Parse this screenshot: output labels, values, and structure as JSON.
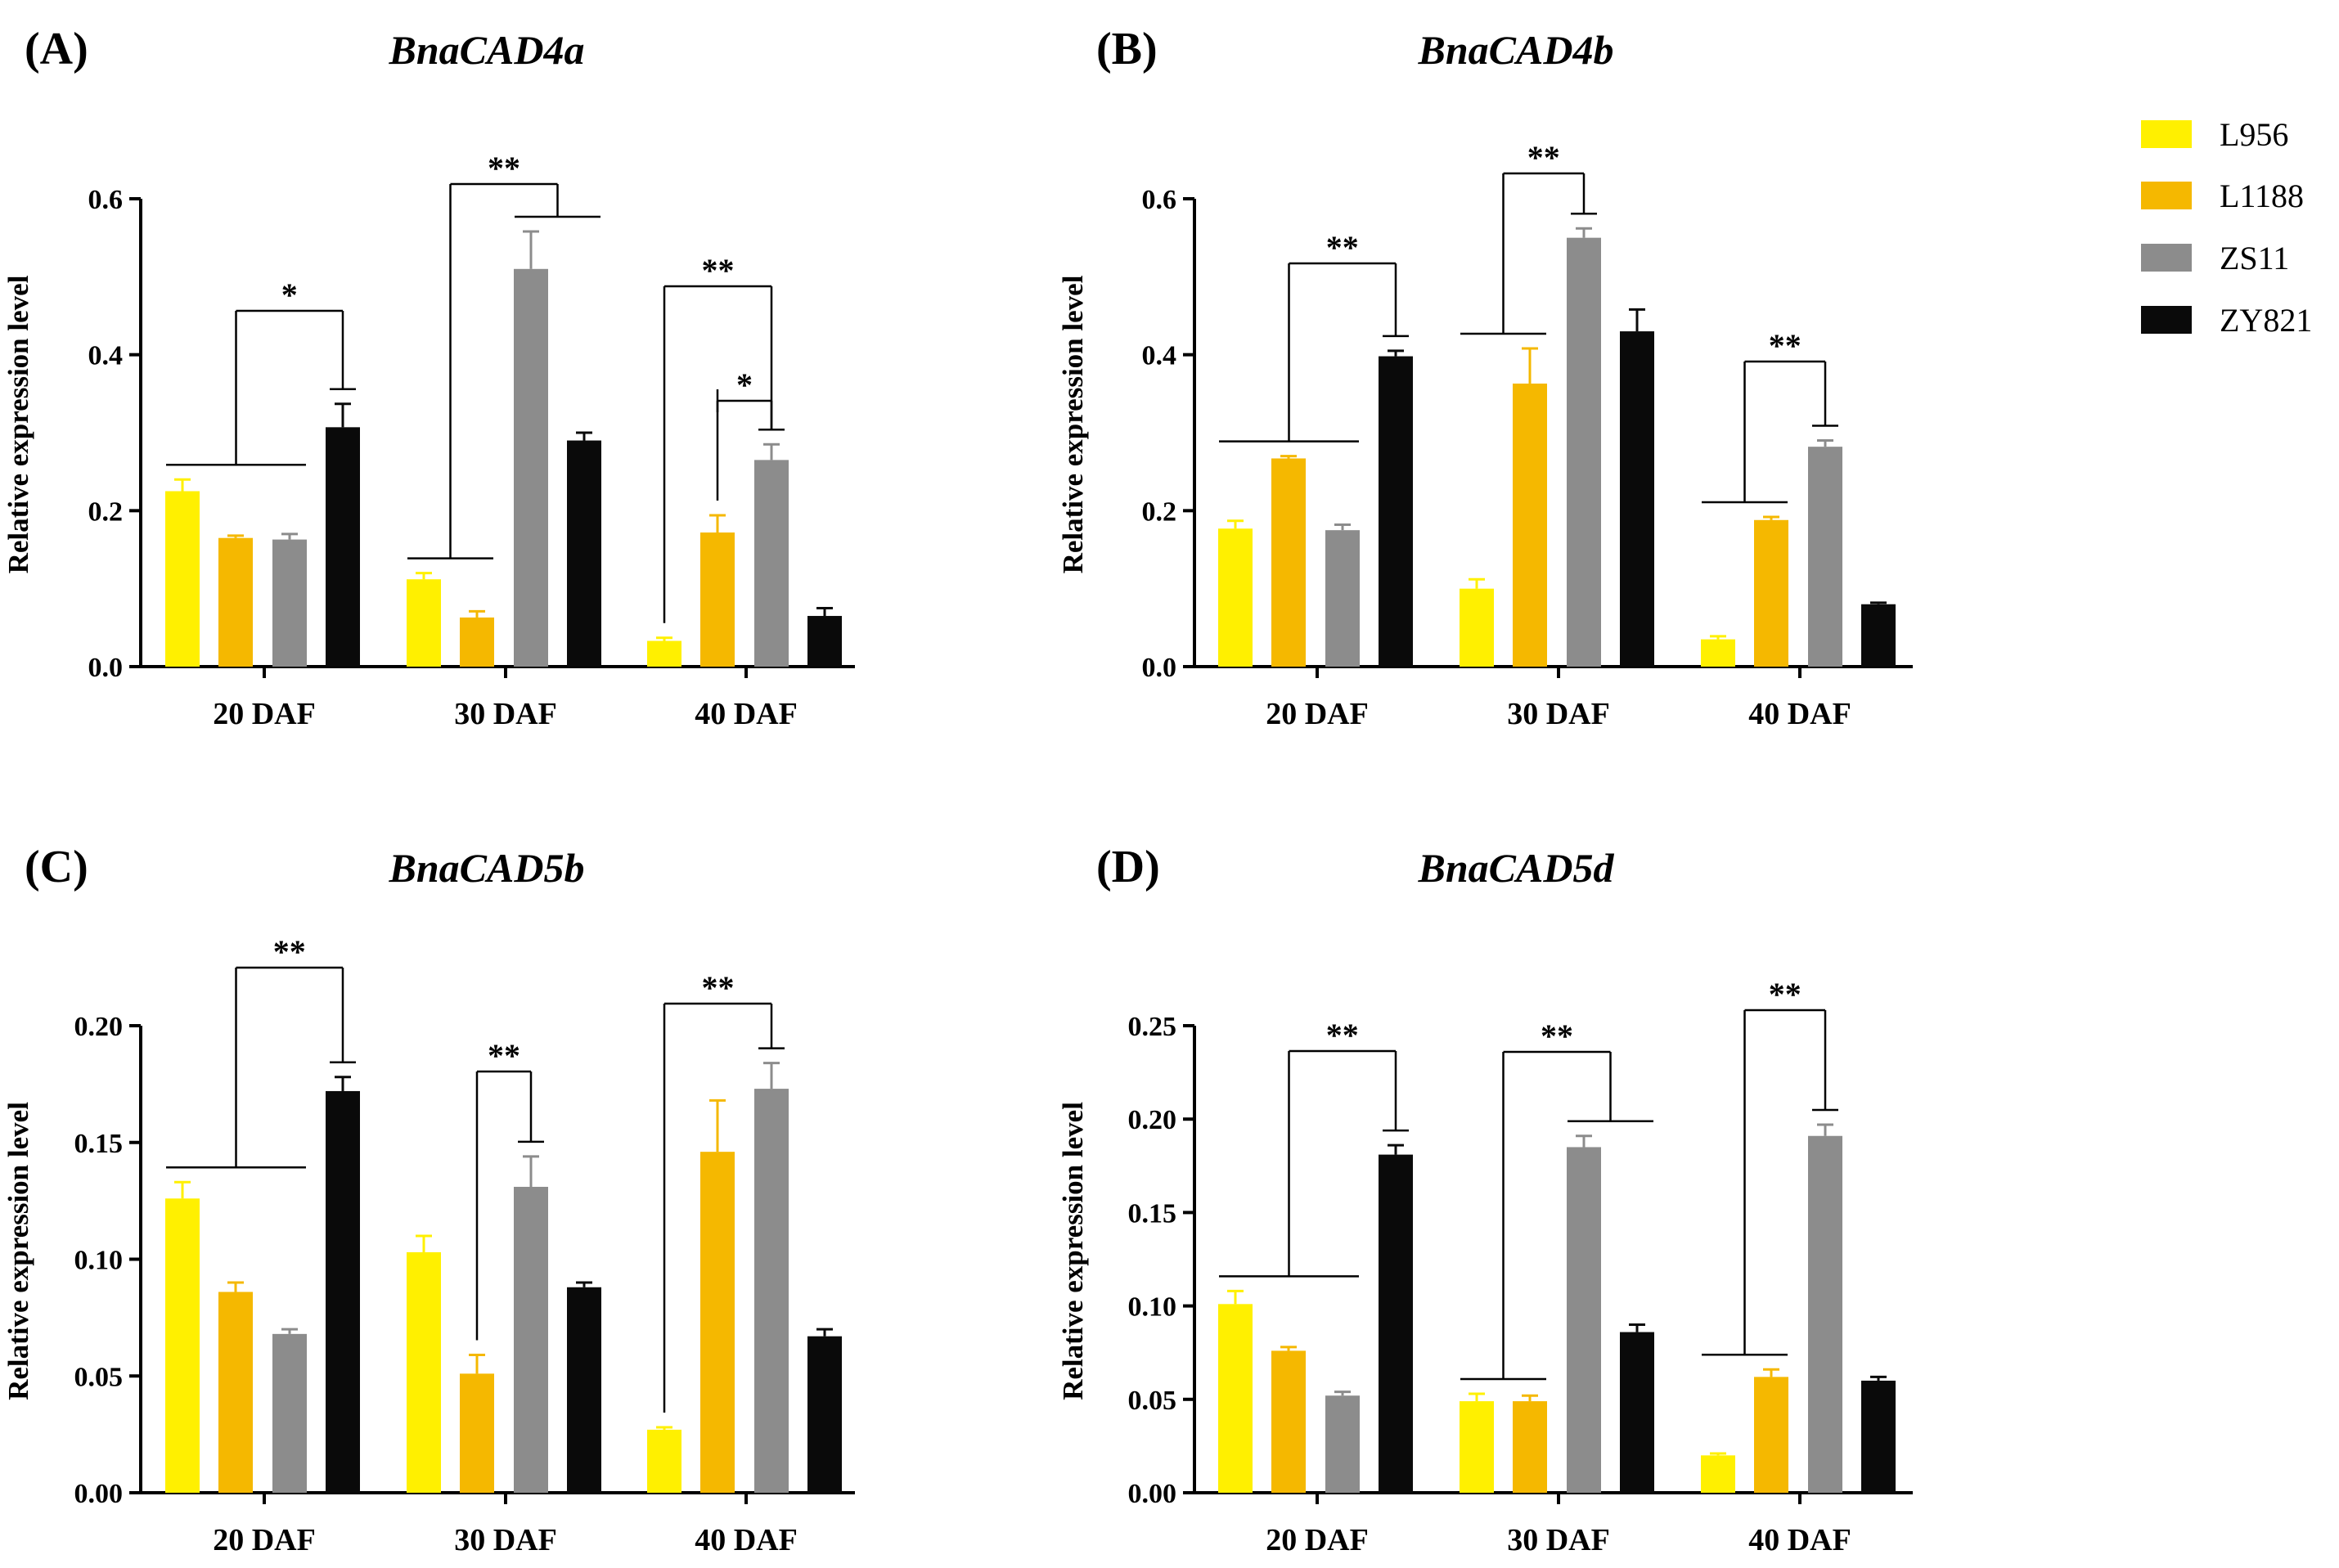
{
  "legend": [
    {
      "name": "L956",
      "color": "#FFF000"
    },
    {
      "name": "L1188",
      "color": "#F5B800"
    },
    {
      "name": "ZS11",
      "color": "#8C8C8C"
    },
    {
      "name": "ZY821",
      "color": "#0A0A0A"
    }
  ],
  "chart_data": [
    {
      "type": "bar",
      "panel": "(A)",
      "title": "BnaCAD4a",
      "ylabel": "Relative expression level",
      "ylim": [
        0,
        0.6
      ],
      "yticks": [
        "0.0",
        "0.2",
        "0.4",
        "0.6"
      ],
      "categories": [
        "20 DAF",
        "30 DAF",
        "40 DAF"
      ],
      "series": [
        {
          "name": "L956",
          "values": [
            0.225,
            0.112,
            0.033
          ],
          "errors": [
            0.015,
            0.008,
            0.004
          ]
        },
        {
          "name": "L1188",
          "values": [
            0.165,
            0.063,
            0.172
          ],
          "errors": [
            0.003,
            0.008,
            0.022
          ]
        },
        {
          "name": "ZS11",
          "values": [
            0.163,
            0.51,
            0.265
          ],
          "errors": [
            0.007,
            0.048,
            0.02
          ]
        },
        {
          "name": "ZY821",
          "values": [
            0.307,
            0.29,
            0.065
          ],
          "errors": [
            0.03,
            0.01,
            0.01
          ]
        }
      ],
      "significance": [
        {
          "label": "*",
          "category": 0,
          "left": [
            0,
            1,
            2
          ],
          "right": [
            3
          ]
        },
        {
          "label": "**",
          "category": 1,
          "left": [
            0,
            1
          ],
          "right": [
            2,
            3
          ]
        },
        {
          "label": "**",
          "category": 2,
          "left": [
            0
          ],
          "right": [
            2
          ]
        },
        {
          "label": "*",
          "category": 2,
          "left": [
            1
          ],
          "right": [
            2
          ]
        }
      ]
    },
    {
      "type": "bar",
      "panel": "(B)",
      "title": "BnaCAD4b",
      "ylabel": "Relative expression level",
      "ylim": [
        0,
        0.6
      ],
      "yticks": [
        "0.0",
        "0.2",
        "0.4",
        "0.6"
      ],
      "categories": [
        "20 DAF",
        "30 DAF",
        "40 DAF"
      ],
      "series": [
        {
          "name": "L956",
          "values": [
            0.177,
            0.1,
            0.035
          ],
          "errors": [
            0.01,
            0.012,
            0.004
          ]
        },
        {
          "name": "L1188",
          "values": [
            0.267,
            0.363,
            0.188
          ],
          "errors": [
            0.003,
            0.045,
            0.004
          ]
        },
        {
          "name": "ZS11",
          "values": [
            0.175,
            0.55,
            0.282
          ],
          "errors": [
            0.007,
            0.012,
            0.008
          ]
        },
        {
          "name": "ZY821",
          "values": [
            0.398,
            0.43,
            0.08
          ],
          "errors": [
            0.007,
            0.028,
            0.002
          ]
        }
      ],
      "significance": [
        {
          "label": "**",
          "category": 0,
          "left": [
            0,
            1,
            2
          ],
          "right": [
            3
          ]
        },
        {
          "label": "**",
          "category": 1,
          "left": [
            0,
            1
          ],
          "right": [
            2
          ]
        },
        {
          "label": "**",
          "category": 2,
          "left": [
            0,
            1
          ],
          "right": [
            2
          ]
        }
      ]
    },
    {
      "type": "bar",
      "panel": "(C)",
      "title": "BnaCAD5b",
      "ylabel": "Relative expression level",
      "ylim": [
        0,
        0.2
      ],
      "yticks": [
        "0.00",
        "0.05",
        "0.10",
        "0.15",
        "0.20"
      ],
      "categories": [
        "20 DAF",
        "30 DAF",
        "40 DAF"
      ],
      "series": [
        {
          "name": "L956",
          "values": [
            0.126,
            0.103,
            0.027
          ],
          "errors": [
            0.007,
            0.007,
            0.001
          ]
        },
        {
          "name": "L1188",
          "values": [
            0.086,
            0.051,
            0.146
          ],
          "errors": [
            0.004,
            0.008,
            0.022
          ]
        },
        {
          "name": "ZS11",
          "values": [
            0.068,
            0.131,
            0.173
          ],
          "errors": [
            0.002,
            0.013,
            0.011
          ]
        },
        {
          "name": "ZY821",
          "values": [
            0.172,
            0.088,
            0.067
          ],
          "errors": [
            0.006,
            0.002,
            0.003
          ]
        }
      ],
      "significance": [
        {
          "label": "**",
          "category": 0,
          "left": [
            0,
            1,
            2
          ],
          "right": [
            3
          ]
        },
        {
          "label": "**",
          "category": 1,
          "left": [
            1
          ],
          "right": [
            2
          ]
        },
        {
          "label": "**",
          "category": 2,
          "left": [
            0
          ],
          "right": [
            2
          ]
        }
      ]
    },
    {
      "type": "bar",
      "panel": "(D)",
      "title": "BnaCAD5d",
      "ylabel": "Relative expression level",
      "ylim": [
        0,
        0.25
      ],
      "yticks": [
        "0.00",
        "0.05",
        "0.10",
        "0.15",
        "0.20",
        "0.25"
      ],
      "categories": [
        "20 DAF",
        "30 DAF",
        "40 DAF"
      ],
      "series": [
        {
          "name": "L956",
          "values": [
            0.101,
            0.049,
            0.02
          ],
          "errors": [
            0.007,
            0.004,
            0.001
          ]
        },
        {
          "name": "L1188",
          "values": [
            0.076,
            0.049,
            0.062
          ],
          "errors": [
            0.002,
            0.003,
            0.004
          ]
        },
        {
          "name": "ZS11",
          "values": [
            0.052,
            0.185,
            0.191
          ],
          "errors": [
            0.002,
            0.006,
            0.006
          ]
        },
        {
          "name": "ZY821",
          "values": [
            0.181,
            0.086,
            0.06
          ],
          "errors": [
            0.005,
            0.004,
            0.002
          ]
        }
      ],
      "significance": [
        {
          "label": "**",
          "category": 0,
          "left": [
            0,
            1,
            2
          ],
          "right": [
            3
          ]
        },
        {
          "label": "**",
          "category": 1,
          "left": [
            0,
            1
          ],
          "right": [
            2,
            3
          ]
        },
        {
          "label": "**",
          "category": 2,
          "left": [
            0,
            1
          ],
          "right": [
            2
          ]
        }
      ]
    }
  ]
}
